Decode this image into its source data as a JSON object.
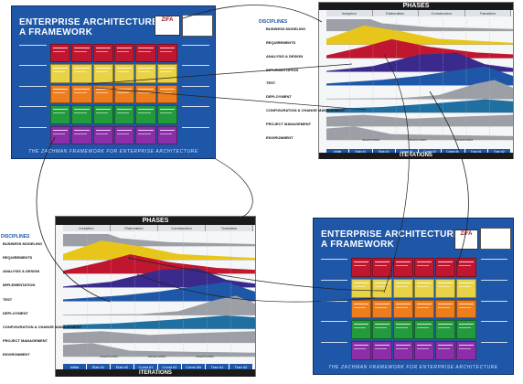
{
  "zachman": {
    "title_line1": "ENTERPRISE ARCHITECTURE:",
    "title_line2": "A FRAMEWORK",
    "logo_text": "ZIFA",
    "footer": "THE ZACHMAN FRAMEWORK FOR ENTERPRISE ARCHITECTURE",
    "row_colors": [
      "#c0162f",
      "#e9d245",
      "#ee7d1c",
      "#239a3c",
      "#8b2ea8"
    ]
  },
  "rup": {
    "phases_title": "PHASES",
    "phases": [
      "Inception",
      "Elaboration",
      "Construction",
      "Transition"
    ],
    "disciplines_title": "DISCIPLINES",
    "disciplines": [
      {
        "label": "BUSINESS MODELING",
        "color": "#9ca0a6"
      },
      {
        "label": "REQUIREMENTS",
        "color": "#e8c619"
      },
      {
        "label": "ANALYSIS & DESIGN",
        "color": "#c0162f"
      },
      {
        "label": "IMPLEMENTATION",
        "color": "#3a2a8c"
      },
      {
        "label": "TEST",
        "color": "#1f57a8"
      },
      {
        "label": "DEPLOYMENT",
        "color": "#9ca0a6"
      },
      {
        "label": "CONFIGURATION & CHANGE MANAGEMENT",
        "color": "#1f6fa0"
      },
      {
        "label": "PROJECT MANAGEMENT",
        "color": "#9ca0a6"
      },
      {
        "label": "ENVIRONMENT",
        "color": "#9ca0a6"
      }
    ],
    "iterations_title": "ITERATIONS",
    "iterations": [
      "Initial",
      "Elab #1",
      "Elab #2",
      "Const #1",
      "Const #2",
      "Const #N",
      "Tran #1",
      "Tran #2"
    ],
    "milestones": [
      "MILESTONES",
      "MILESTONES",
      "MILESTONES"
    ]
  }
}
